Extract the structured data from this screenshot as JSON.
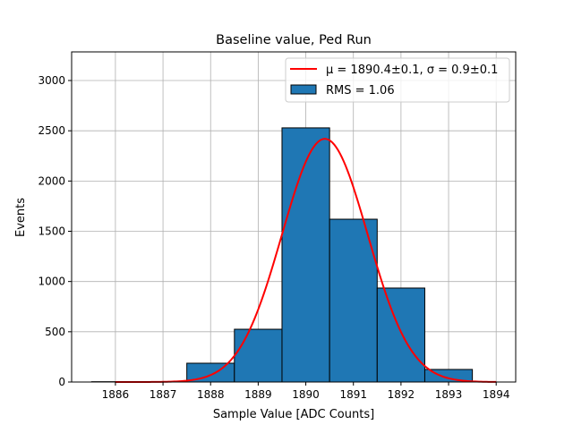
{
  "chart_data": {
    "type": "bar",
    "title": "Baseline value, Ped Run",
    "xlabel": "Sample Value [ADC Counts]",
    "ylabel": "Events",
    "xlim": [
      1885.08,
      1894.41
    ],
    "ylim": [
      0,
      3285
    ],
    "grid": true,
    "xticks": [
      1886,
      1887,
      1888,
      1889,
      1890,
      1891,
      1892,
      1893,
      1894
    ],
    "yticks": [
      0,
      500,
      1000,
      1500,
      2000,
      2500,
      3000
    ],
    "bin_width": 1,
    "bin_centers": [
      1886,
      1887,
      1888,
      1889,
      1890,
      1891,
      1892,
      1893
    ],
    "values": [
      3,
      0,
      187,
      525,
      2529,
      1620,
      935,
      125
    ],
    "bar_color": "#1f77b4",
    "fit": {
      "type": "gaussian",
      "mu": 1890.4,
      "sigma": 0.9,
      "amplitude": 2420,
      "x_range": [
        1886,
        1894
      ],
      "color": "#ff0000"
    },
    "legend": {
      "placement": "top-right",
      "entries": [
        "μ = 1890.4±0.1, σ = 0.9±0.1",
        "RMS = 1.06"
      ]
    }
  }
}
